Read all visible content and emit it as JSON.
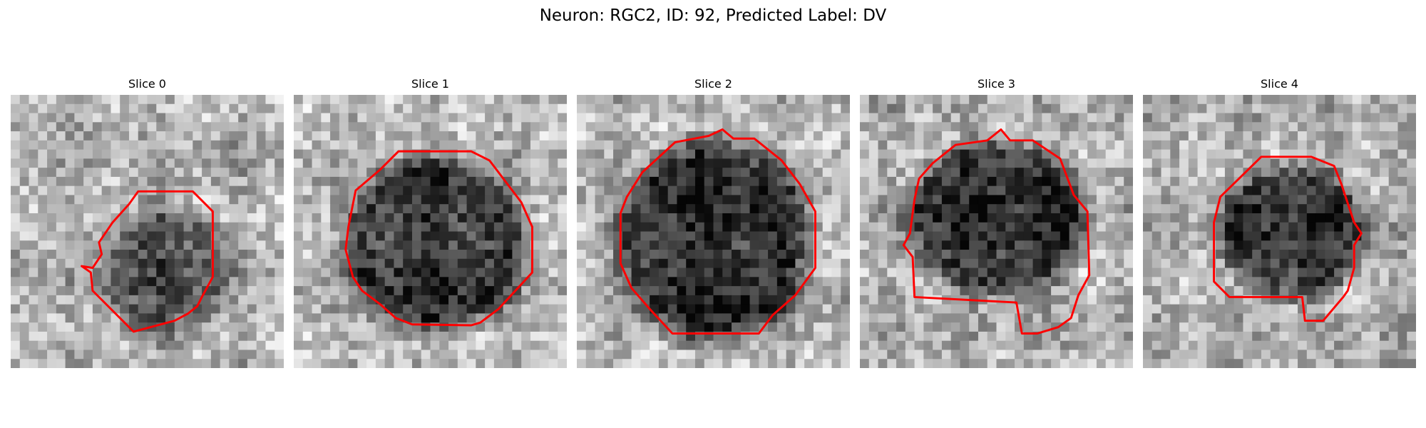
{
  "figure": {
    "title": "Neuron: RGC2, ID: 92, Predicted Label: DV"
  },
  "slices": [
    {
      "title": "Slice 0"
    },
    {
      "title": "Slice 1"
    },
    {
      "title": "Slice 2"
    },
    {
      "title": "Slice 3"
    },
    {
      "title": "Slice 4"
    }
  ],
  "contour_color": "#ff0000",
  "colormap": "gray"
}
